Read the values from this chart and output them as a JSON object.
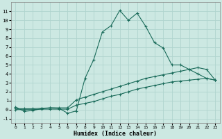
{
  "xlabel": "Humidex (Indice chaleur)",
  "xlim": [
    -0.5,
    23.5
  ],
  "ylim": [
    -1.5,
    12
  ],
  "yticks": [
    -1,
    0,
    1,
    2,
    3,
    4,
    5,
    6,
    7,
    8,
    9,
    10,
    11
  ],
  "xticks": [
    0,
    1,
    2,
    3,
    4,
    5,
    6,
    7,
    8,
    9,
    10,
    11,
    12,
    13,
    14,
    15,
    16,
    17,
    18,
    19,
    20,
    21,
    22,
    23
  ],
  "bg_color": "#cce8e2",
  "grid_color": "#b0d4ce",
  "line_color": "#1a6b5a",
  "series1_x": [
    0,
    1,
    2,
    3,
    4,
    5,
    6,
    7,
    8,
    9,
    10,
    11,
    12,
    13,
    14,
    15,
    16,
    17,
    18,
    19,
    20,
    21,
    22,
    23
  ],
  "series1_y": [
    0.3,
    -0.2,
    -0.1,
    0.1,
    0.2,
    0.15,
    -0.4,
    -0.15,
    3.5,
    5.6,
    8.7,
    9.4,
    11.1,
    10.0,
    10.8,
    9.3,
    7.5,
    6.9,
    5.0,
    5.0,
    4.5,
    4.0,
    3.5,
    3.3
  ],
  "series2_x": [
    0,
    1,
    2,
    3,
    4,
    5,
    6,
    7,
    8,
    9,
    10,
    11,
    12,
    13,
    14,
    15,
    16,
    17,
    18,
    19,
    20,
    21,
    22,
    23
  ],
  "series2_y": [
    0.1,
    0.1,
    0.1,
    0.15,
    0.2,
    0.2,
    0.2,
    1.1,
    1.4,
    1.7,
    2.0,
    2.3,
    2.6,
    2.9,
    3.2,
    3.5,
    3.7,
    3.9,
    4.1,
    4.3,
    4.5,
    4.7,
    4.5,
    3.3
  ],
  "series3_x": [
    0,
    1,
    2,
    3,
    4,
    5,
    6,
    7,
    8,
    9,
    10,
    11,
    12,
    13,
    14,
    15,
    16,
    17,
    18,
    19,
    20,
    21,
    22,
    23
  ],
  "series3_y": [
    0.0,
    0.0,
    0.0,
    0.05,
    0.05,
    0.05,
    0.05,
    0.5,
    0.7,
    0.9,
    1.2,
    1.5,
    1.7,
    2.0,
    2.3,
    2.5,
    2.7,
    2.9,
    3.1,
    3.2,
    3.3,
    3.4,
    3.5,
    3.3
  ]
}
